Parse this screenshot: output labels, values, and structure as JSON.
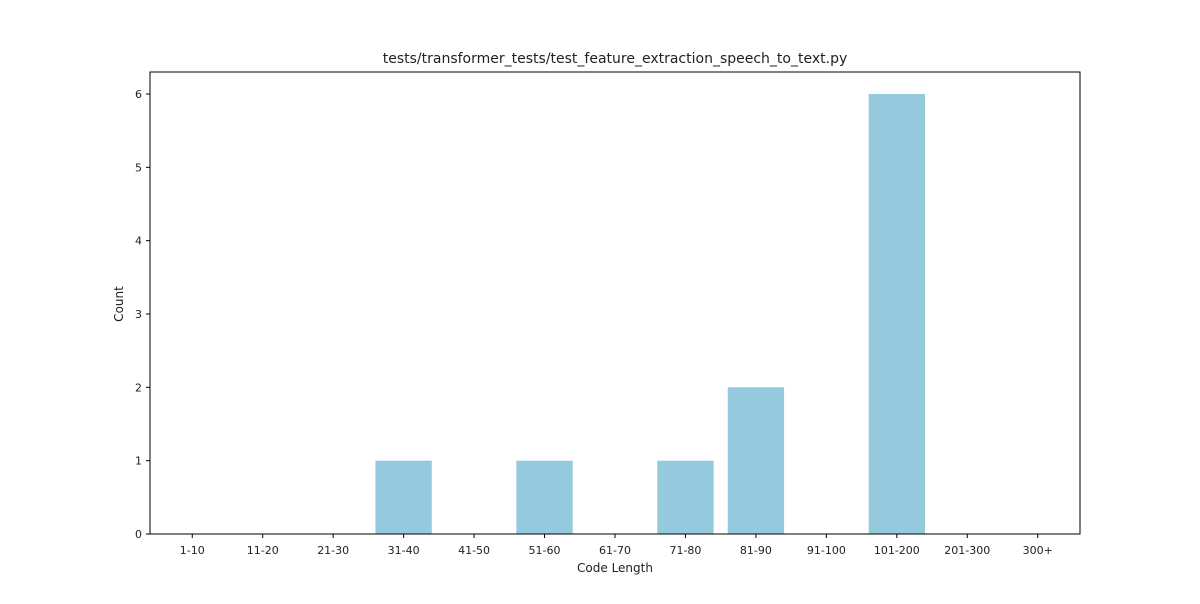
{
  "chart_data": {
    "type": "bar",
    "title": "tests/transformer_tests/test_feature_extraction_speech_to_text.py",
    "xlabel": "Code Length",
    "ylabel": "Count",
    "categories": [
      "1-10",
      "11-20",
      "21-30",
      "31-40",
      "41-50",
      "51-60",
      "61-70",
      "71-80",
      "81-90",
      "91-100",
      "101-200",
      "201-300",
      "300+"
    ],
    "values": [
      0,
      0,
      0,
      1,
      0,
      1,
      0,
      1,
      2,
      0,
      6,
      0,
      0
    ],
    "ylim": [
      0,
      6.3
    ],
    "yticks": [
      0,
      1,
      2,
      3,
      4,
      5,
      6
    ],
    "grid": false,
    "legend": "none",
    "colors": {
      "bar": "#95c9dd",
      "axis": "#000000",
      "text": "#222222"
    }
  }
}
